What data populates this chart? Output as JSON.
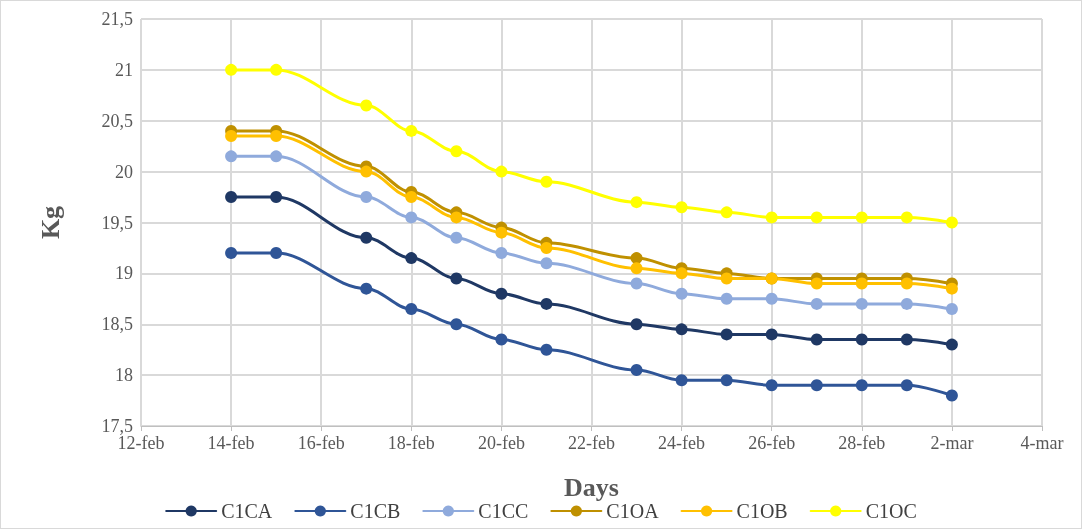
{
  "chart_data": {
    "type": "line",
    "xlabel": "Days",
    "ylabel": "Kg",
    "x": [
      "--02-14",
      "--02-15",
      "--02-17",
      "--02-18",
      "--02-19",
      "--02-20",
      "--02-21",
      "--02-23",
      "--02-24",
      "--02-25",
      "--02-26",
      "--02-27",
      "--02-28",
      "--03-01",
      "--03-02"
    ],
    "series": [
      {
        "name": "C1CA",
        "color": "#1f3864",
        "values": [
          19.75,
          19.75,
          19.35,
          19.15,
          18.95,
          18.8,
          18.7,
          18.5,
          18.45,
          18.4,
          18.4,
          18.35,
          18.35,
          18.35,
          18.3
        ]
      },
      {
        "name": "C1CB",
        "color": "#2f5597",
        "values": [
          19.2,
          19.2,
          18.85,
          18.65,
          18.5,
          18.35,
          18.25,
          18.05,
          17.95,
          17.95,
          17.9,
          17.9,
          17.9,
          17.9,
          17.8
        ]
      },
      {
        "name": "C1CC",
        "color": "#8faadc",
        "values": [
          20.15,
          20.15,
          19.75,
          19.55,
          19.35,
          19.2,
          19.1,
          18.9,
          18.8,
          18.75,
          18.75,
          18.7,
          18.7,
          18.7,
          18.65
        ]
      },
      {
        "name": "C1OA",
        "color": "#bf9000",
        "values": [
          20.4,
          20.4,
          20.05,
          19.8,
          19.6,
          19.45,
          19.3,
          19.15,
          19.05,
          19,
          18.95,
          18.95,
          18.95,
          18.95,
          18.9
        ]
      },
      {
        "name": "C1OB",
        "color": "#ffc000",
        "values": [
          20.35,
          20.35,
          20,
          19.75,
          19.55,
          19.4,
          19.25,
          19.05,
          19,
          18.95,
          18.95,
          18.9,
          18.9,
          18.9,
          18.85
        ]
      },
      {
        "name": "C1OC",
        "color": "#ffff00",
        "values": [
          21,
          21,
          20.65,
          20.4,
          20.2,
          20,
          19.9,
          19.7,
          19.65,
          19.6,
          19.55,
          19.55,
          19.55,
          19.55,
          19.5
        ]
      }
    ],
    "xlim": [
      "--02-12",
      "--03-04"
    ],
    "xticks": [
      {
        "value": "--02-12",
        "label": "12-feb"
      },
      {
        "value": "--02-14",
        "label": "14-feb"
      },
      {
        "value": "--02-16",
        "label": "16-feb"
      },
      {
        "value": "--02-18",
        "label": "18-feb"
      },
      {
        "value": "--02-20",
        "label": "20-feb"
      },
      {
        "value": "--02-22",
        "label": "22-feb"
      },
      {
        "value": "--02-24",
        "label": "24-feb"
      },
      {
        "value": "--02-26",
        "label": "26-feb"
      },
      {
        "value": "--02-28",
        "label": "28-feb"
      },
      {
        "value": "--03-02",
        "label": "2-mar"
      },
      {
        "value": "--03-04",
        "label": "4-mar"
      }
    ],
    "ylim": [
      17.5,
      21.5
    ],
    "yticks": [
      {
        "value": 17.5,
        "label": "17,5"
      },
      18,
      {
        "value": 18.5,
        "label": "18,5"
      },
      19,
      {
        "value": 19.5,
        "label": "19,5"
      },
      20,
      {
        "value": 20.5,
        "label": "20,5"
      },
      21,
      {
        "value": 21.5,
        "label": "21,5"
      }
    ],
    "grid": true,
    "legend": "bottom",
    "marker": "circle"
  }
}
